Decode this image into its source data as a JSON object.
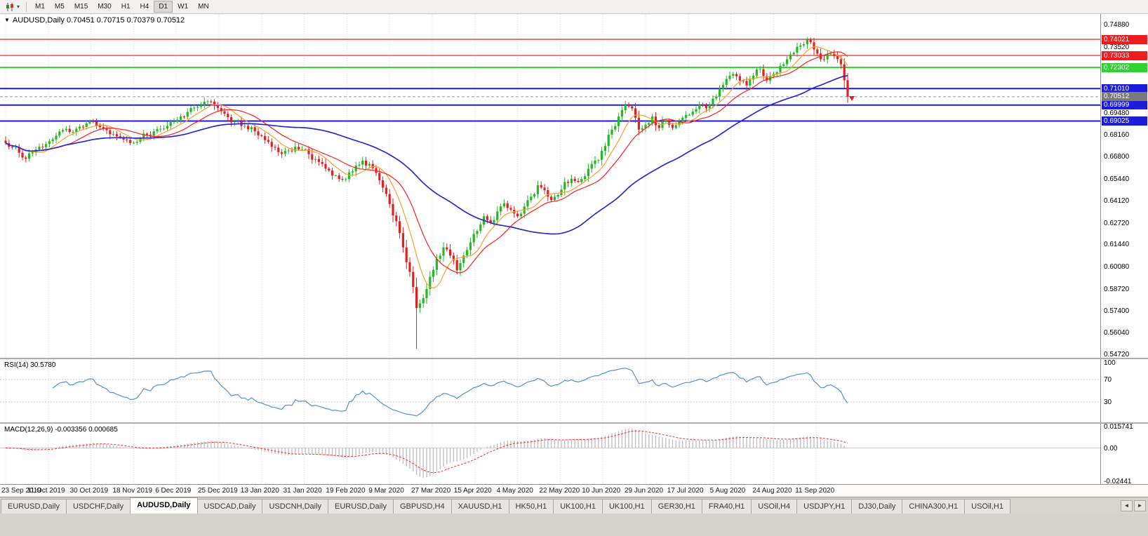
{
  "colors": {
    "up": "#25b825",
    "down": "#e32020",
    "ma_fast": "#ff9d2b",
    "ma_mid": "#ff1f1f",
    "ma_slow": "#2929cc",
    "rsi": "#4f93d2",
    "macd_hist": "#c0c0c0",
    "macd_signal": "#ff2a2a",
    "grid": "#dadada",
    "current_price_bg": "#7a7a7a"
  },
  "toolbar": {
    "chart_type_icon": "candlestick-chart-icon",
    "caret_icon": "▾",
    "timeframes": [
      "M1",
      "M5",
      "M15",
      "M30",
      "H1",
      "H4",
      "D1",
      "W1",
      "MN"
    ],
    "active_timeframe": "D1"
  },
  "main_chart": {
    "collapse_icon": "▼",
    "symbol_label": "AUDUSD,Daily",
    "ohlc_text": "0.70451 0.70715 0.70379 0.70512",
    "price_axis_max": 0.7488,
    "price_axis_min": 0.5472,
    "price_axis_labels": [
      "0.74880",
      "0.73520",
      "0.69480",
      "0.68160",
      "0.66800",
      "0.65440",
      "0.64120",
      "0.62720",
      "0.61440",
      "0.60080",
      "0.58720",
      "0.57400",
      "0.56040",
      "0.54720"
    ],
    "levels": [
      {
        "value": 0.74021,
        "label": "0.74021",
        "color": "#ee1c1c",
        "width": 1.2
      },
      {
        "value": 0.73033,
        "label": "0.73033",
        "color": "#ee1c1c",
        "width": 1.2
      },
      {
        "value": 0.72302,
        "label": "0.72302",
        "color": "#2fd32f",
        "width": 2
      },
      {
        "value": 0.7101,
        "label": "0.71010",
        "color": "#1c1cdd",
        "width": 2
      },
      {
        "value": 0.69999,
        "label": "0.69999",
        "color": "#1c1cdd",
        "width": 2
      },
      {
        "value": 0.69025,
        "label": "0.69025",
        "color": "#1c1cdd",
        "width": 2
      }
    ],
    "current_price": {
      "value": 0.70512,
      "label": "0.70512"
    }
  },
  "rsi": {
    "label": "RSI(14) 30.5780",
    "value": 30.578,
    "axis_labels": [
      "100",
      "70",
      "30"
    ],
    "level_lines": [
      70,
      30
    ]
  },
  "macd": {
    "label": "MACD(12,26,9) -0.003356 0.000685",
    "main_value": -0.003356,
    "signal_value": 0.000685,
    "max": 0.015741,
    "min": -0.02441,
    "axis_labels": [
      "0.015741",
      "0.00",
      "-0.02441"
    ]
  },
  "date_axis": [
    "23 Sep 2019",
    "11 Oct 2019",
    "30 Oct 2019",
    "18 Nov 2019",
    "6 Dec 2019",
    "25 Dec 2019",
    "13 Jan 2020",
    "31 Jan 2020",
    "19 Feb 2020",
    "9 Mar 2020",
    "27 Mar 2020",
    "15 Apr 2020",
    "4 May 2020",
    "22 May 2020",
    "10 Jun 2020",
    "29 Jun 2020",
    "17 Jul 2020",
    "5 Aug 2020",
    "24 Aug 2020",
    "11 Sep 2020"
  ],
  "tabs": {
    "items": [
      "EURUSD,Daily",
      "USDCHF,Daily",
      "AUDUSD,Daily",
      "USDCAD,Daily",
      "USDCNH,Daily",
      "EURUSD,Daily",
      "GBPUSD,H4",
      "XAUUSD,H1",
      "HK50,H1",
      "UK100,H1",
      "UK100,H1",
      "GER30,H1",
      "FRA40,H1",
      "USOil,H4",
      "USDJPY,H1",
      "DJ30,Daily",
      "CHINA300,H1",
      "USOil,H1"
    ],
    "active_index": 2,
    "scroll_left": "◄",
    "scroll_right": "►"
  },
  "chart_data": {
    "type": "candlestick",
    "symbol": "AUDUSD",
    "timeframe": "Daily",
    "title": "AUDUSD,Daily",
    "ohlc_display": {
      "open": 0.70451,
      "high": 0.70715,
      "low": 0.70379,
      "close": 0.70512
    },
    "y_range": [
      0.5472,
      0.7488
    ],
    "x_tick_labels": [
      "23 Sep 2019",
      "11 Oct 2019",
      "30 Oct 2019",
      "18 Nov 2019",
      "6 Dec 2019",
      "25 Dec 2019",
      "13 Jan 2020",
      "31 Jan 2020",
      "19 Feb 2020",
      "9 Mar 2020",
      "27 Mar 2020",
      "15 Apr 2020",
      "4 May 2020",
      "22 May 2020",
      "10 Jun 2020",
      "29 Jun 2020",
      "17 Jul 2020",
      "5 Aug 2020",
      "24 Aug 2020",
      "11 Sep 2020"
    ],
    "sampling": "approximately every 2 trading days, read from chart",
    "closes_approx": [
      0.6768,
      0.674,
      0.6708,
      0.6672,
      0.6712,
      0.6745,
      0.6762,
      0.679,
      0.6838,
      0.6855,
      0.6836,
      0.6868,
      0.6888,
      0.69,
      0.6866,
      0.6846,
      0.6822,
      0.68,
      0.6786,
      0.677,
      0.6795,
      0.6818,
      0.684,
      0.6855,
      0.6872,
      0.69,
      0.693,
      0.6958,
      0.6984,
      0.7,
      0.7022,
      0.6996,
      0.6962,
      0.6926,
      0.69,
      0.6872,
      0.6852,
      0.684,
      0.681,
      0.6775,
      0.674,
      0.6702,
      0.6722,
      0.6745,
      0.673,
      0.67,
      0.667,
      0.664,
      0.66,
      0.657,
      0.6545,
      0.6588,
      0.663,
      0.666,
      0.664,
      0.6585,
      0.6495,
      0.6395,
      0.629,
      0.613,
      0.598,
      0.576,
      0.582,
      0.595,
      0.606,
      0.613,
      0.608,
      0.599,
      0.608,
      0.616,
      0.623,
      0.632,
      0.628,
      0.635,
      0.64,
      0.636,
      0.632,
      0.638,
      0.644,
      0.651,
      0.648,
      0.642,
      0.645,
      0.653,
      0.655,
      0.653,
      0.6565,
      0.664,
      0.6665,
      0.675,
      0.685,
      0.693,
      0.7,
      0.698,
      0.685,
      0.688,
      0.693,
      0.686,
      0.6905,
      0.686,
      0.69,
      0.694,
      0.696,
      0.7,
      0.698,
      0.704,
      0.71,
      0.716,
      0.719,
      0.715,
      0.712,
      0.718,
      0.722,
      0.715,
      0.719,
      0.724,
      0.728,
      0.732,
      0.7365,
      0.74,
      0.734,
      0.728,
      0.731,
      0.73,
      0.725,
      0.7051
    ],
    "march_low": 0.551,
    "peak_high": 0.7414,
    "horizontal_levels": [
      0.74021,
      0.73033,
      0.72302,
      0.7101,
      0.69999,
      0.69025
    ],
    "current_price": 0.70512,
    "indicators": {
      "moving_averages": [
        {
          "name": "fast",
          "period": 8,
          "color": "#ff9d2b"
        },
        {
          "name": "mid",
          "period": 16,
          "color": "#ff1f1f"
        },
        {
          "name": "slow",
          "period": 50,
          "color": "#2929cc"
        }
      ],
      "rsi": {
        "period": 14,
        "last_value": 30.578,
        "levels": [
          30,
          70
        ],
        "range": [
          0,
          100
        ]
      },
      "macd": {
        "fast": 12,
        "slow": 26,
        "signal": 9,
        "last_main": -0.003356,
        "last_signal": 0.000685,
        "axis_max": 0.015741,
        "axis_min": -0.02441
      }
    }
  }
}
